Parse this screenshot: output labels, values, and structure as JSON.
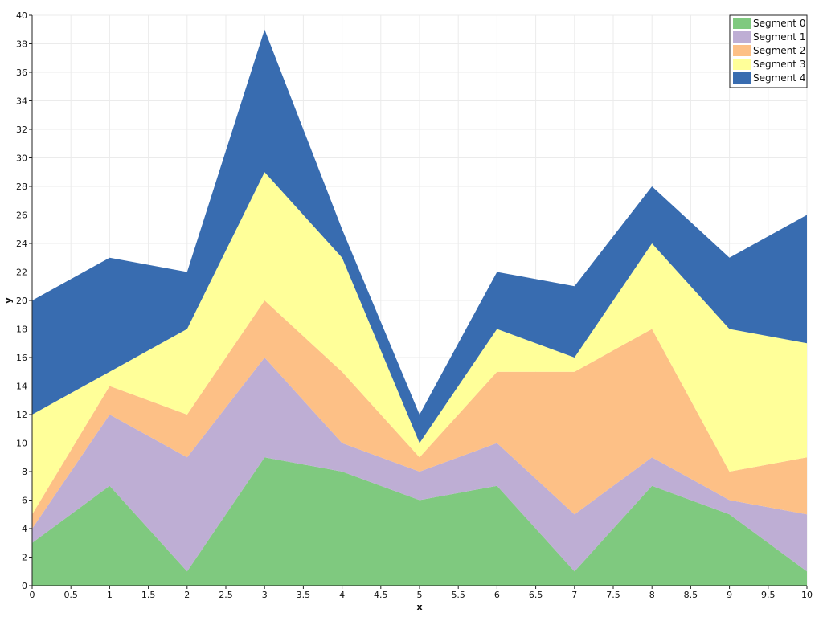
{
  "chart_data": {
    "type": "area",
    "stacked": true,
    "title": "",
    "xlabel": "x",
    "ylabel": "y",
    "xlim": [
      0,
      10
    ],
    "ylim": [
      0,
      40
    ],
    "x_ticks": [
      "0",
      "0.5",
      "1",
      "1.5",
      "2",
      "2.5",
      "3",
      "3.5",
      "4",
      "4.5",
      "5",
      "5.5",
      "6",
      "6.5",
      "7",
      "7.5",
      "8",
      "8.5",
      "9",
      "9.5",
      "10"
    ],
    "y_ticks": [
      "0",
      "2",
      "4",
      "6",
      "8",
      "10",
      "12",
      "14",
      "16",
      "18",
      "20",
      "22",
      "24",
      "26",
      "28",
      "30",
      "32",
      "34",
      "36",
      "38",
      "40"
    ],
    "grid": true,
    "legend_position": "top-right",
    "x": [
      0,
      1,
      2,
      3,
      4,
      5,
      6,
      7,
      8,
      9,
      10
    ],
    "series": [
      {
        "name": "Segment 0",
        "color": "#7fc97f",
        "values": [
          3,
          7,
          1,
          9,
          8,
          6,
          7,
          1,
          7,
          5,
          1
        ]
      },
      {
        "name": "Segment 1",
        "color": "#beaed4",
        "values": [
          1,
          5,
          8,
          7,
          2,
          2,
          3,
          4,
          2,
          1,
          4
        ]
      },
      {
        "name": "Segment 2",
        "color": "#fdc086",
        "values": [
          1,
          2,
          3,
          4,
          5,
          1,
          5,
          10,
          9,
          2,
          4
        ]
      },
      {
        "name": "Segment 3",
        "color": "#ffff99",
        "values": [
          7,
          1,
          6,
          9,
          8,
          1,
          3,
          1,
          6,
          10,
          8
        ]
      },
      {
        "name": "Segment 4",
        "color": "#386cb0",
        "values": [
          8,
          8,
          4,
          10,
          2,
          2,
          4,
          5,
          4,
          5,
          9
        ]
      }
    ]
  }
}
